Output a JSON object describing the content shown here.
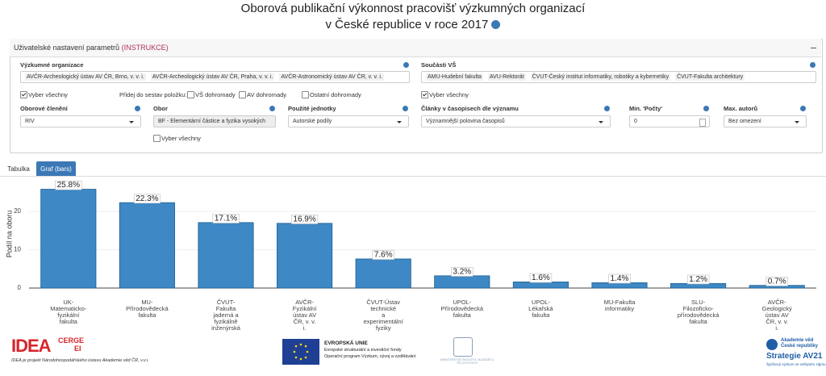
{
  "header": {
    "title_line1": "Oborová publikační výkonnost pracovišť výzkumných organizací",
    "title_line2": "v České republice v roce 2017"
  },
  "panel": {
    "title": "Uživatelské nastavení parametrů",
    "instructions": "(INSTRUKCE)"
  },
  "organizations": {
    "label": "Výzkumné organizace",
    "selected": [
      "AVČR-Archeologický ústav AV ČR, Brno, v. v. i.",
      "AVČR-Archeologický ústav AV ČR, Praha, v. v. i.",
      "AVČR-Astronomický ústav AV ČR, v. v. i."
    ],
    "select_all": "Vyber všechny"
  },
  "components": {
    "label": "Součásti VŠ",
    "selected": [
      "AMU-Hudební fakulta",
      "AVU-Rektorát",
      "ČVUT-Český institut informatiky, robotiky a kybernetiky",
      "ČVUT-Fakulta architektury"
    ],
    "select_all": "Vyber všechny"
  },
  "add_to_sets": {
    "label": "Přidej do sestav položku:",
    "options": [
      "VŠ dohromady",
      "AV dohromady",
      "Ostatní dohromady"
    ]
  },
  "selects": [
    {
      "label": "Oborové členění",
      "value": "RIV"
    },
    {
      "label": "Obor",
      "value": "BF - Elementární částice a fyzika vysokých"
    },
    {
      "label": "Použité jednotky",
      "value": "Autorské podíly"
    },
    {
      "label": "Články v časopisech dle významu",
      "value": "Významnější polovina časopisů"
    },
    {
      "label": "Min. 'Počty'",
      "value": "0"
    },
    {
      "label": "Max. autorů",
      "value": "Bez omezení"
    }
  ],
  "obor_select_all": "Vyber všechny",
  "tabs": [
    "Tabulka",
    "Graf (bars)"
  ],
  "chart_data": {
    "type": "bar",
    "y_label": "Podíl na oboru",
    "categories": [
      "UK-\nMatematicko-\nfyzikální\nfakulta",
      "MU-\nPřírodovědecká\nfakulta",
      "ČVUT-\nFakulta\njaderná a\nfyzikálně\ninženýrská",
      "AVČR-\nFyzikální\nústav AV\nČR, v. v.\ni.",
      "ČVUT-Ústav\ntechnické\na\nexperimentální\nfyziky",
      "UPOL-\nPřírodovědecká\nfakulta",
      "UPOL-\nLékařská\nfakulta",
      "MU-Fakulta\ninformatiky",
      "SLU-\nFilozoficko-\npřírodovědecká\nfakulta",
      "AVČR-\nGeologický\nústav AV\nČR, v. v.\ni."
    ],
    "values": [
      25.8,
      22.3,
      17.1,
      16.9,
      7.6,
      3.2,
      1.6,
      1.4,
      1.2,
      0.7
    ],
    "value_labels": [
      "25.8%",
      "22.3%",
      "17.1%",
      "16.9%",
      "7.6%",
      "3.2%",
      "1.6%",
      "1.4%",
      "1.2%",
      "0.7%"
    ],
    "color": "#3d88c5",
    "ylim": [
      -1.2,
      27.6
    ],
    "yticks": [
      0,
      10,
      20
    ],
    "grid": true
  },
  "footer": {
    "idea": "IDEA",
    "cerge": "CERGE",
    "ei": "EI",
    "idea_note": "IDEA je projekt Národohospodářského ústavu Akademie věd ČR, v.v.i.",
    "eu_title": "EVROPSKÁ UNIE",
    "eu_line1": "Evropské strukturální a investiční fondy",
    "eu_line2": "Operační program Výzkum, vývoj a vzdělávání",
    "msmt": "MINISTERSTVO ŠKOLSTVÍ, MLÁDEŽE A TĚLOVÝCHOVY",
    "av_line1": "Akademie věd",
    "av_line2": "České republiky",
    "strategy": "Strategie AV21",
    "av_tagline": "Špičkový výzkum ve veřejném zájmu"
  }
}
